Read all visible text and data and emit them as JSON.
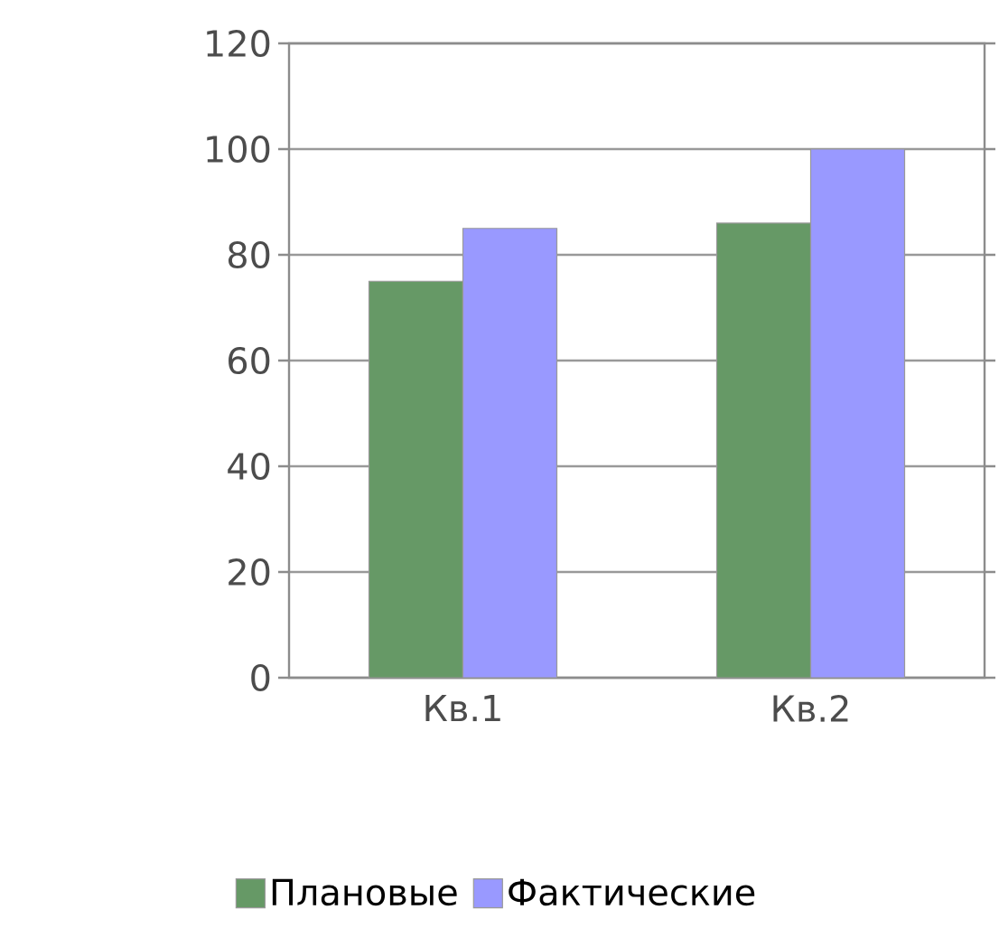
{
  "chart_data": {
    "type": "bar",
    "categories": [
      "Кв.1",
      "Кв.2"
    ],
    "series": [
      {
        "name": "Плановые",
        "color": "#669966",
        "values": [
          75,
          86
        ]
      },
      {
        "name": "Фактические",
        "color": "#9999ff",
        "values": [
          85,
          100
        ]
      }
    ],
    "ylim": [
      0,
      120
    ],
    "yticks": [
      0,
      20,
      40,
      60,
      80,
      100,
      120
    ],
    "grid": "y",
    "legend": "bottom"
  }
}
